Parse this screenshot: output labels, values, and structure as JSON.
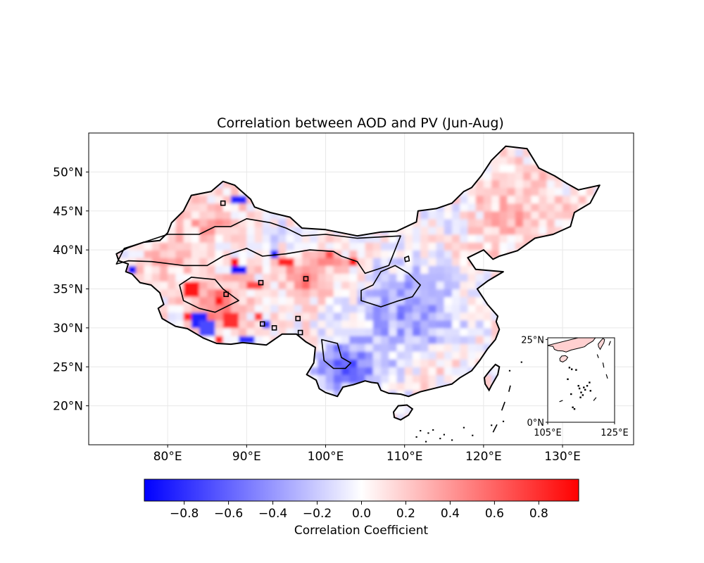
{
  "chart_data": {
    "type": "heatmap",
    "title": "Correlation between AOD and PV (Jun-Aug)",
    "xlim": [
      70,
      139
    ],
    "ylim": [
      15,
      55
    ],
    "x_ticks": [
      {
        "value": 80,
        "label": "80°E"
      },
      {
        "value": 90,
        "label": "90°E"
      },
      {
        "value": 100,
        "label": "100°E"
      },
      {
        "value": 110,
        "label": "110°E"
      },
      {
        "value": 120,
        "label": "120°E"
      },
      {
        "value": 130,
        "label": "130°E"
      }
    ],
    "y_ticks": [
      {
        "value": 20,
        "label": "20°N"
      },
      {
        "value": 25,
        "label": "25°N"
      },
      {
        "value": 30,
        "label": "30°N"
      },
      {
        "value": 35,
        "label": "35°N"
      },
      {
        "value": 40,
        "label": "40°N"
      },
      {
        "value": 45,
        "label": "45°N"
      },
      {
        "value": 50,
        "label": "50°N"
      }
    ],
    "grid": true,
    "colormap": {
      "low": "#0000ff",
      "mid": "#ffffff",
      "high": "#ff0000"
    },
    "colorbar": {
      "label": "Correlation Coefficient",
      "range": [
        -0.98,
        0.98
      ],
      "ticks": [
        {
          "value": -0.8,
          "label": "−0.8"
        },
        {
          "value": -0.6,
          "label": "−0.6"
        },
        {
          "value": -0.4,
          "label": "−0.4"
        },
        {
          "value": -0.2,
          "label": "−0.2"
        },
        {
          "value": 0.0,
          "label": "0.0"
        },
        {
          "value": 0.2,
          "label": "0.2"
        },
        {
          "value": 0.4,
          "label": "0.4"
        },
        {
          "value": 0.6,
          "label": "0.6"
        },
        {
          "value": 0.8,
          "label": "0.8"
        }
      ]
    },
    "country_outline": [
      [
        73.5,
        39.5
      ],
      [
        75,
        40.3
      ],
      [
        77,
        41
      ],
      [
        79,
        41.2
      ],
      [
        80,
        42.2
      ],
      [
        80.5,
        43.5
      ],
      [
        82,
        45
      ],
      [
        83,
        47
      ],
      [
        85.5,
        47.5
      ],
      [
        87,
        48.8
      ],
      [
        88.5,
        48.3
      ],
      [
        90.5,
        46.5
      ],
      [
        91,
        45.5
      ],
      [
        93,
        44.8
      ],
      [
        95.5,
        44.2
      ],
      [
        97,
        42.8
      ],
      [
        100,
        42.6
      ],
      [
        104,
        41.8
      ],
      [
        107,
        42.3
      ],
      [
        109,
        42.4
      ],
      [
        111.5,
        43.6
      ],
      [
        111.7,
        45
      ],
      [
        114,
        45.3
      ],
      [
        116,
        46
      ],
      [
        117.5,
        47.5
      ],
      [
        118.5,
        48
      ],
      [
        119.7,
        49.5
      ],
      [
        121,
        51.5
      ],
      [
        122.8,
        53.3
      ],
      [
        125.5,
        53
      ],
      [
        127,
        50.5
      ],
      [
        129,
        49.5
      ],
      [
        130.6,
        48.5
      ],
      [
        132,
        47.7
      ],
      [
        134.7,
        48.3
      ],
      [
        133.5,
        46
      ],
      [
        131.5,
        44.8
      ],
      [
        131,
        43
      ],
      [
        128.8,
        42
      ],
      [
        126.5,
        41.5
      ],
      [
        124.3,
        39.9
      ],
      [
        122,
        39.2
      ],
      [
        121.2,
        38.8
      ],
      [
        120,
        40
      ],
      [
        118,
        39
      ],
      [
        119,
        37.5
      ],
      [
        122.5,
        37.2
      ],
      [
        120.5,
        36
      ],
      [
        119.2,
        35
      ],
      [
        120.5,
        33
      ],
      [
        121.8,
        31.5
      ],
      [
        121.6,
        30.8
      ],
      [
        122,
        29.8
      ],
      [
        121.5,
        28.5
      ],
      [
        120.5,
        27.3
      ],
      [
        119.5,
        25.8
      ],
      [
        118.5,
        24.5
      ],
      [
        117,
        23.6
      ],
      [
        116,
        22.8
      ],
      [
        114,
        22.3
      ],
      [
        112,
        21.8
      ],
      [
        110.5,
        21.2
      ],
      [
        109.5,
        21.5
      ],
      [
        108,
        21.6
      ],
      [
        107,
        22
      ],
      [
        106.6,
        22.9
      ],
      [
        105.8,
        23
      ],
      [
        105,
        23.2
      ],
      [
        103.5,
        22.7
      ],
      [
        102.2,
        22.4
      ],
      [
        101.5,
        21.2
      ],
      [
        100,
        21.7
      ],
      [
        99.2,
        22.2
      ],
      [
        98.8,
        23.3
      ],
      [
        97.6,
        24
      ],
      [
        98.5,
        25.5
      ],
      [
        98.7,
        27.5
      ],
      [
        97.5,
        28.2
      ],
      [
        96.3,
        29.2
      ],
      [
        94.5,
        29.2
      ],
      [
        92.5,
        27.8
      ],
      [
        91.5,
        27.9
      ],
      [
        89.5,
        28.1
      ],
      [
        88,
        27.9
      ],
      [
        86.2,
        28
      ],
      [
        84.5,
        28.7
      ],
      [
        82.5,
        29.9
      ],
      [
        81,
        30.2
      ],
      [
        79.3,
        31.2
      ],
      [
        78.8,
        32.5
      ],
      [
        79.5,
        33
      ],
      [
        79,
        34.5
      ],
      [
        77.9,
        35.5
      ],
      [
        76.5,
        35.8
      ],
      [
        75.5,
        36.9
      ],
      [
        74.7,
        37.2
      ],
      [
        75,
        38.2
      ],
      [
        73.8,
        38.6
      ]
    ],
    "hainan_outline": [
      [
        108.6,
        19.2
      ],
      [
        109.2,
        20
      ],
      [
        110.3,
        20.1
      ],
      [
        111,
        19.6
      ],
      [
        110.5,
        18.8
      ],
      [
        109.5,
        18.2
      ],
      [
        108.7,
        18.5
      ]
    ],
    "taiwan_outline": [
      [
        121.5,
        25.3
      ],
      [
        122,
        25
      ],
      [
        121.8,
        24
      ],
      [
        121,
        22.6
      ],
      [
        120.7,
        22
      ],
      [
        120.2,
        22.8
      ],
      [
        120.1,
        23.6
      ],
      [
        120.8,
        24.5
      ]
    ],
    "inset": {
      "xlim": [
        105,
        125
      ],
      "ylim": [
        0,
        25.5
      ],
      "x_ticks": [
        {
          "value": 105,
          "label": "105°E"
        },
        {
          "value": 125,
          "label": "125°E"
        }
      ],
      "y_ticks": [
        {
          "value": 0,
          "label": "0°N"
        },
        {
          "value": 25,
          "label": "25°N"
        }
      ]
    }
  }
}
